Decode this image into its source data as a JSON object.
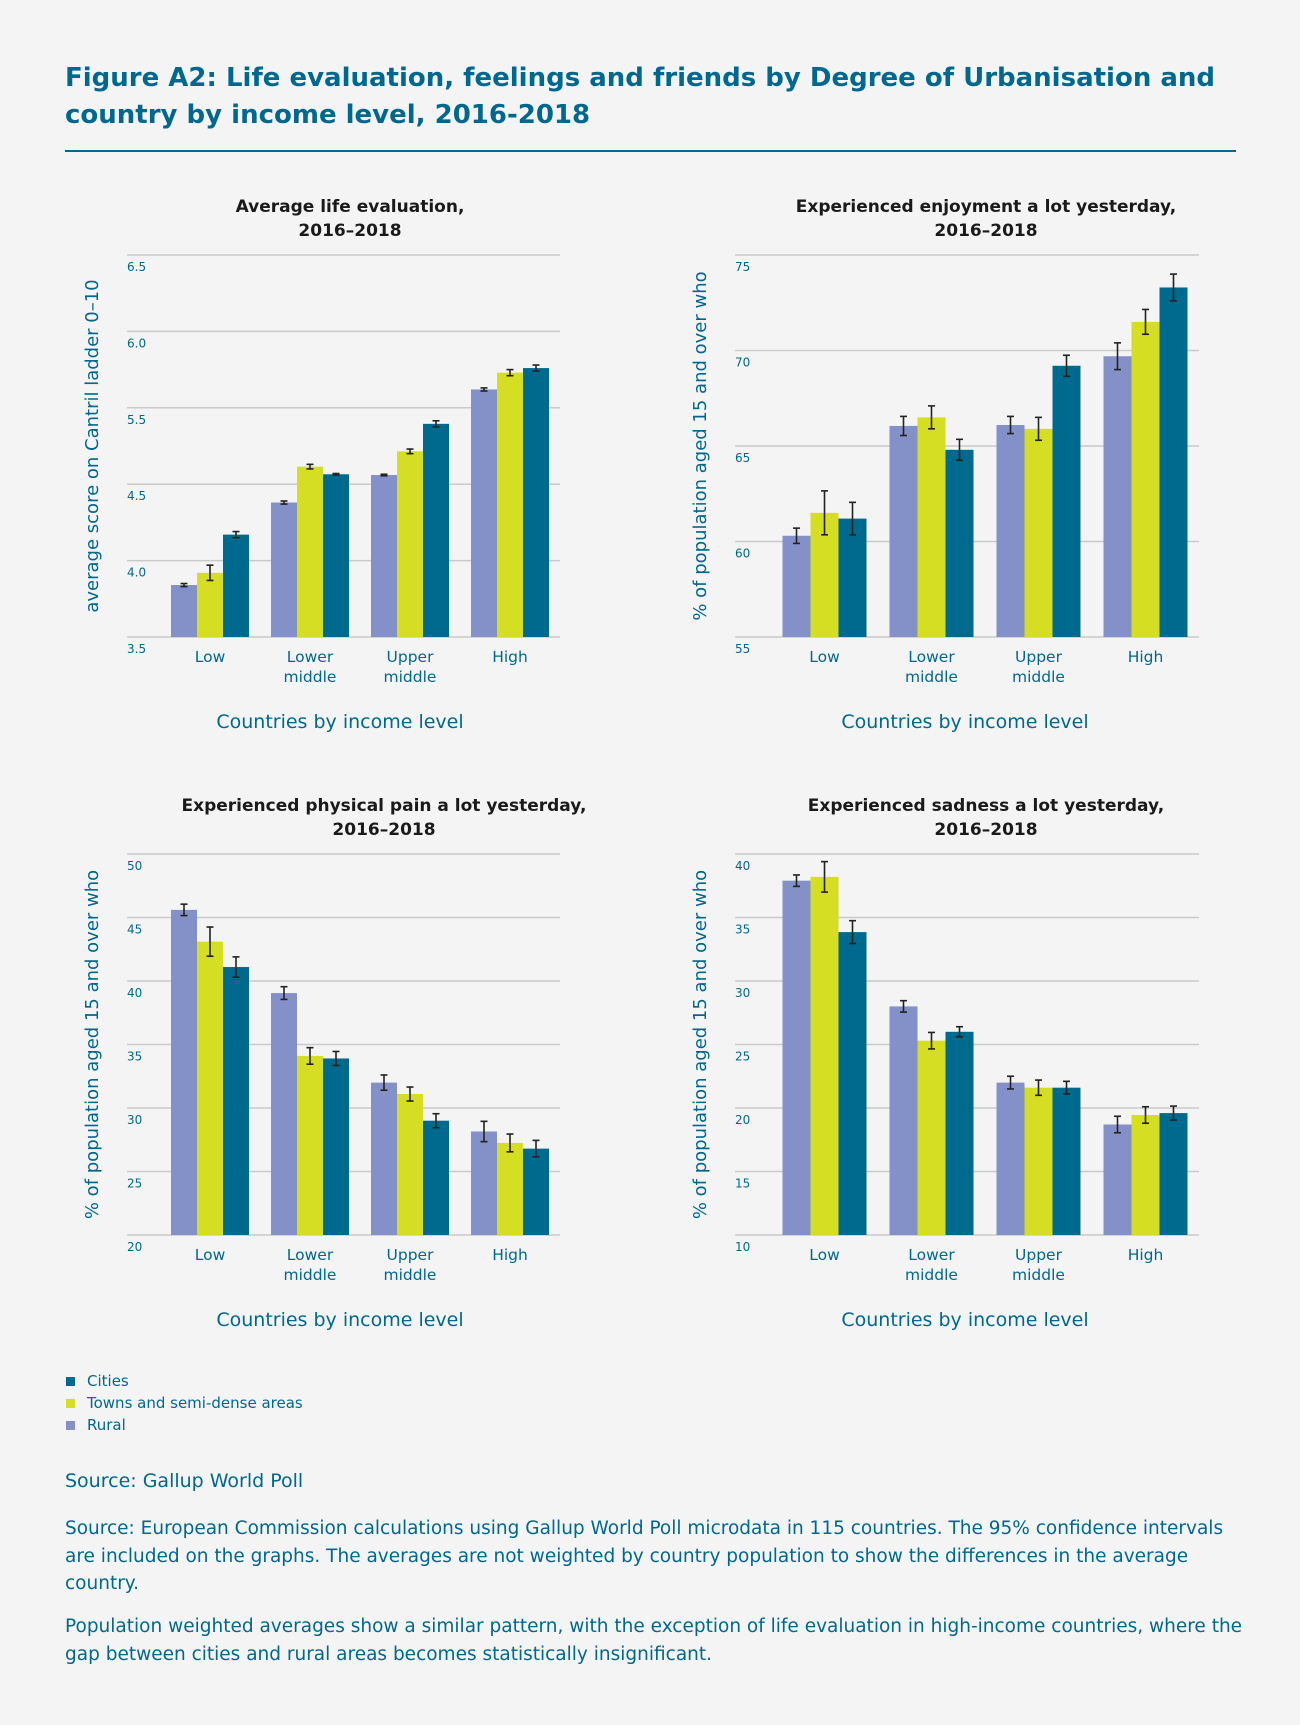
{
  "figure_title": "Figure A2: Life evaluation, feelings and friends by Degree of Urbanisation and country by income level, 2016-2018",
  "colors": {
    "accent": "#00678f",
    "Cities": "#006a8e",
    "Towns and semi-dense areas": "#d5de23",
    "Rural": "#8490c8",
    "error_bar": "#222222",
    "gridline": "#c9c9c9"
  },
  "legend": [
    {
      "label": "Cities",
      "color": "#006a8e"
    },
    {
      "label": "Towns and semi-dense areas",
      "color": "#d5de23"
    },
    {
      "label": "Rural",
      "color": "#8490c8"
    }
  ],
  "source_line": "Source: Gallup World Poll",
  "note_1": "Source: European Commission calculations using Gallup World Poll microdata in 115 countries. The 95% confidence intervals are included on the graphs. The averages are not weighted by country population to show the differences in the average country.",
  "note_2": "Population weighted averages show a similar pattern, with the exception of life evaluation in high-income countries, where the gap between cities and rural areas becomes statistically insignificant.",
  "chart_data": [
    {
      "type": "bar",
      "title": [
        "Average life evaluation,",
        "2016–2018"
      ],
      "ylabel": "average score on Cantril ladder 0–10",
      "xlabel": "Countries by income level",
      "categories": [
        [
          "Low"
        ],
        [
          "Lower",
          "middle"
        ],
        [
          "Upper",
          "middle"
        ],
        [
          "High"
        ]
      ],
      "y_ticks": [
        "6.5",
        "6.0",
        "5.5",
        "4.5",
        "4.0",
        "3.5"
      ],
      "ylim": [
        3.5,
        6.5
      ],
      "grid": true,
      "series": [
        {
          "name": "Rural",
          "values": [
            3.84,
            4.38,
            4.62,
            5.62
          ],
          "ci": [
            0.01,
            0.01,
            0.01,
            0.01
          ]
        },
        {
          "name": "Towns and semi-dense areas",
          "values": [
            3.92,
            4.73,
            4.93,
            5.73
          ],
          "ci": [
            0.05,
            0.03,
            0.03,
            0.02
          ]
        },
        {
          "name": "Cities",
          "values": [
            4.17,
            4.63,
            5.29,
            5.76
          ],
          "ci": [
            0.02,
            0.01,
            0.04,
            0.02
          ]
        }
      ]
    },
    {
      "type": "bar",
      "title": [
        "Experienced enjoyment a lot yesterday,",
        "2016–2018"
      ],
      "ylabel": "% of population aged 15 and over who",
      "xlabel": "Countries by income level",
      "categories": [
        [
          "Low"
        ],
        [
          "Lower",
          "middle"
        ],
        [
          "Upper",
          "middle"
        ],
        [
          "High"
        ]
      ],
      "y_ticks": [
        "75",
        "70",
        "65",
        "60",
        "55"
      ],
      "ylim": [
        55,
        75
      ],
      "grid": true,
      "series": [
        {
          "name": "Rural",
          "values": [
            60.3,
            66.05,
            66.1,
            69.7
          ],
          "ci": [
            0.4,
            0.5,
            0.45,
            0.7
          ]
        },
        {
          "name": "Towns and semi-dense areas",
          "values": [
            61.5,
            66.5,
            65.9,
            71.5
          ],
          "ci": [
            1.15,
            0.6,
            0.6,
            0.65
          ]
        },
        {
          "name": "Cities",
          "values": [
            61.2,
            64.8,
            69.2,
            73.3
          ],
          "ci": [
            0.85,
            0.55,
            0.55,
            0.7
          ]
        }
      ]
    },
    {
      "type": "bar",
      "title": [
        "Experienced physical pain a lot yesterday,",
        "2016–2018"
      ],
      "ylabel": "% of population aged 15 and over who",
      "xlabel": "Countries by income level",
      "categories": [
        [
          "Low"
        ],
        [
          "Lower",
          "middle"
        ],
        [
          "Upper",
          "middle"
        ],
        [
          "High"
        ]
      ],
      "y_ticks": [
        "50",
        "45",
        "40",
        "35",
        "30",
        "25",
        "20"
      ],
      "ylim": [
        20,
        50
      ],
      "grid": true,
      "series": [
        {
          "name": "Rural",
          "values": [
            45.6,
            39.05,
            32.0,
            28.15
          ],
          "ci": [
            0.45,
            0.5,
            0.6,
            0.8
          ]
        },
        {
          "name": "Towns and semi-dense areas",
          "values": [
            43.1,
            34.1,
            31.1,
            27.25
          ],
          "ci": [
            1.15,
            0.65,
            0.55,
            0.7
          ]
        },
        {
          "name": "Cities",
          "values": [
            41.1,
            33.9,
            29.0,
            26.8
          ],
          "ci": [
            0.8,
            0.55,
            0.55,
            0.65
          ]
        }
      ]
    },
    {
      "type": "bar",
      "title": [
        "Experienced sadness a lot yesterday,",
        "2016–2018"
      ],
      "ylabel": "% of population aged 15 and over who",
      "xlabel": "Countries by income level",
      "categories": [
        [
          "Low"
        ],
        [
          "Lower",
          "middle"
        ],
        [
          "Upper",
          "middle"
        ],
        [
          "High"
        ]
      ],
      "y_ticks": [
        "40",
        "35",
        "30",
        "25",
        "20",
        "15",
        "10"
      ],
      "ylim": [
        10,
        40
      ],
      "grid": true,
      "series": [
        {
          "name": "Rural",
          "values": [
            37.9,
            28.0,
            22.0,
            18.7
          ],
          "ci": [
            0.45,
            0.45,
            0.5,
            0.65
          ]
        },
        {
          "name": "Towns and semi-dense areas",
          "values": [
            38.2,
            25.3,
            21.6,
            19.45
          ],
          "ci": [
            1.2,
            0.65,
            0.6,
            0.65
          ]
        },
        {
          "name": "Cities",
          "values": [
            33.85,
            26.0,
            21.6,
            19.6
          ],
          "ci": [
            0.9,
            0.4,
            0.5,
            0.55
          ]
        }
      ]
    }
  ]
}
